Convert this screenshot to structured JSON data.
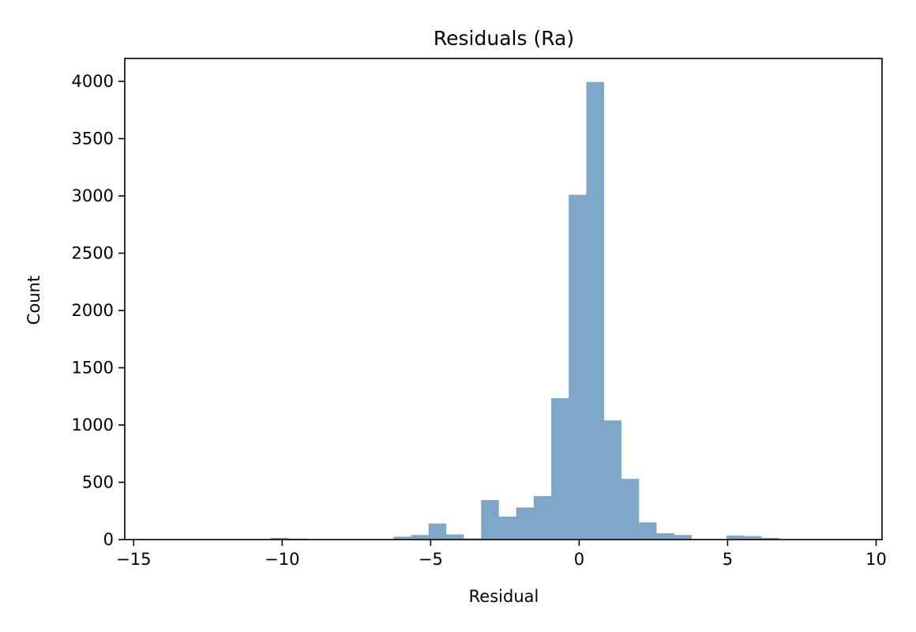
{
  "chart_data": {
    "type": "bar",
    "title": "Residuals (Ra)",
    "xlabel": "Residual",
    "ylabel": "Count",
    "xlim": [
      -15.3,
      10.2
    ],
    "ylim": [
      0,
      4200
    ],
    "xticks": [
      -15,
      -10,
      -5,
      0,
      5,
      10
    ],
    "xtick_labels": [
      "−15",
      "−10",
      "−5",
      "0",
      "5",
      "10"
    ],
    "yticks": [
      0,
      500,
      1000,
      1500,
      2000,
      2500,
      3000,
      3500,
      4000
    ],
    "ytick_labels": [
      "0",
      "500",
      "1000",
      "1500",
      "2000",
      "2500",
      "3000",
      "3500",
      "4000"
    ],
    "grid": false,
    "bar_color": "#7ea6c9",
    "bin_edges": [
      -15.1,
      -14.51,
      -13.92,
      -13.33,
      -12.74,
      -12.15,
      -11.56,
      -10.97,
      -10.38,
      -9.79,
      -9.2,
      -8.61,
      -8.02,
      -7.43,
      -6.84,
      -6.25,
      -5.66,
      -5.07,
      -4.48,
      -3.89,
      -3.3,
      -2.71,
      -2.12,
      -1.53,
      -0.94,
      -0.35,
      0.24,
      0.83,
      1.42,
      2.01,
      2.6,
      3.19,
      3.78,
      4.37,
      4.96,
      5.55,
      6.14,
      6.73,
      7.32,
      7.91,
      8.5,
      9.09
    ],
    "values": [
      1,
      0,
      0,
      0,
      0,
      0,
      0,
      0,
      15,
      8,
      3,
      2,
      2,
      2,
      3,
      25,
      40,
      140,
      45,
      10,
      345,
      200,
      280,
      380,
      1235,
      3010,
      3995,
      1040,
      530,
      150,
      55,
      40,
      5,
      3,
      35,
      30,
      15,
      3,
      1,
      1,
      1
    ]
  }
}
